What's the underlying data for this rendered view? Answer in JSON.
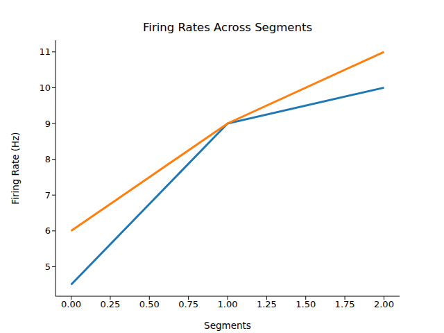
{
  "chart_data": {
    "type": "line",
    "title": "Firing Rates Across Segments",
    "x_label": "Segments",
    "y_label": "Firing Rate (Hz)",
    "x": [
      0,
      1,
      2
    ],
    "series": [
      {
        "color": "#1f77b4",
        "values": [
          4.5,
          9,
          10
        ]
      },
      {
        "color": "#ff7f0e",
        "values": [
          6,
          9,
          11
        ]
      }
    ],
    "xlim": [
      -0.1,
      2.1
    ],
    "ylim": [
      4.175,
      11.325
    ],
    "xticks": [
      {
        "value": 0,
        "label": "0.00"
      },
      {
        "value": 0.25,
        "label": "0.25"
      },
      {
        "value": 0.5,
        "label": "0.50"
      },
      {
        "value": 0.75,
        "label": "0.75"
      },
      {
        "value": 1,
        "label": "1.00"
      },
      {
        "value": 1.25,
        "label": "1.25"
      },
      {
        "value": 1.5,
        "label": "1.50"
      },
      {
        "value": 1.75,
        "label": "1.75"
      },
      {
        "value": 2,
        "label": "2.00"
      }
    ],
    "yticks": [
      5,
      6,
      7,
      8,
      9,
      10,
      11
    ],
    "grid": false
  }
}
